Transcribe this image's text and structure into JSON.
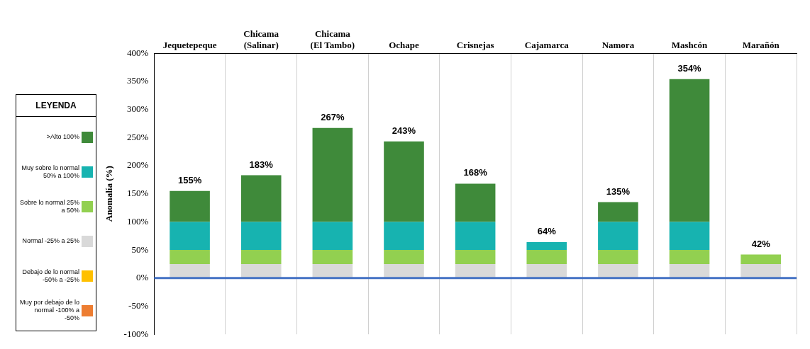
{
  "chart_data": {
    "type": "bar",
    "stacked": true,
    "ylabel": "Anomalía (%)",
    "legend_title": "LEYENDA",
    "legend": "left",
    "categories": [
      "Jequetepeque",
      "Chicama (Salinar)",
      "Chicama (El Tambo)",
      "Ochape",
      "Crisnejas",
      "Cajamarca",
      "Namora",
      "Mashcón",
      "Marañón"
    ],
    "series": [
      {
        "name": "Normal -25% a 25%",
        "color": "#d9d9d9",
        "values": [
          25,
          25,
          25,
          25,
          25,
          25,
          25,
          25,
          25
        ]
      },
      {
        "name": "Sobre lo normal 25% a 50%",
        "color": "#92d050",
        "values": [
          25,
          25,
          25,
          25,
          25,
          25,
          25,
          25,
          17
        ]
      },
      {
        "name": "Muy sobre lo normal 50% a 100%",
        "color": "#17b3b0",
        "values": [
          50,
          50,
          50,
          50,
          50,
          14,
          50,
          50,
          null
        ]
      },
      {
        "name": ">Alto 100%",
        "color": "#3f8a3a",
        "values": [
          55,
          83,
          167,
          143,
          68,
          null,
          35,
          254,
          null
        ]
      },
      {
        "name": "Debajo de lo normal -50% a -25%",
        "color": "#ffc000",
        "values": [
          null,
          null,
          null,
          null,
          null,
          null,
          null,
          null,
          null
        ]
      },
      {
        "name": "Muy por debajo de lo normal -100% a -50%",
        "color": "#ed7d31",
        "values": [
          null,
          null,
          null,
          null,
          null,
          null,
          null,
          null,
          null
        ]
      }
    ],
    "totals": [
      "155%",
      "183%",
      "267%",
      "243%",
      "168%",
      "64%",
      "135%",
      "354%",
      "42%"
    ],
    "ylim": [
      -100,
      400
    ],
    "yticks": [
      {
        "value": -100,
        "label": "-100%"
      },
      {
        "value": -50,
        "label": "-50%"
      },
      {
        "value": 0,
        "label": "0%"
      },
      {
        "value": 50,
        "label": "50%"
      },
      {
        "value": 100,
        "label": "100%"
      },
      {
        "value": 150,
        "label": "150%"
      },
      {
        "value": 200,
        "label": "200%"
      },
      {
        "value": 250,
        "label": "250%"
      },
      {
        "value": 300,
        "label": "300%"
      },
      {
        "value": 350,
        "label": "350%"
      },
      {
        "value": 400,
        "label": "400%"
      }
    ],
    "grid": "x",
    "ref_lines": [
      {
        "axis": "y",
        "value": 0,
        "color": "#4472c4"
      }
    ]
  }
}
